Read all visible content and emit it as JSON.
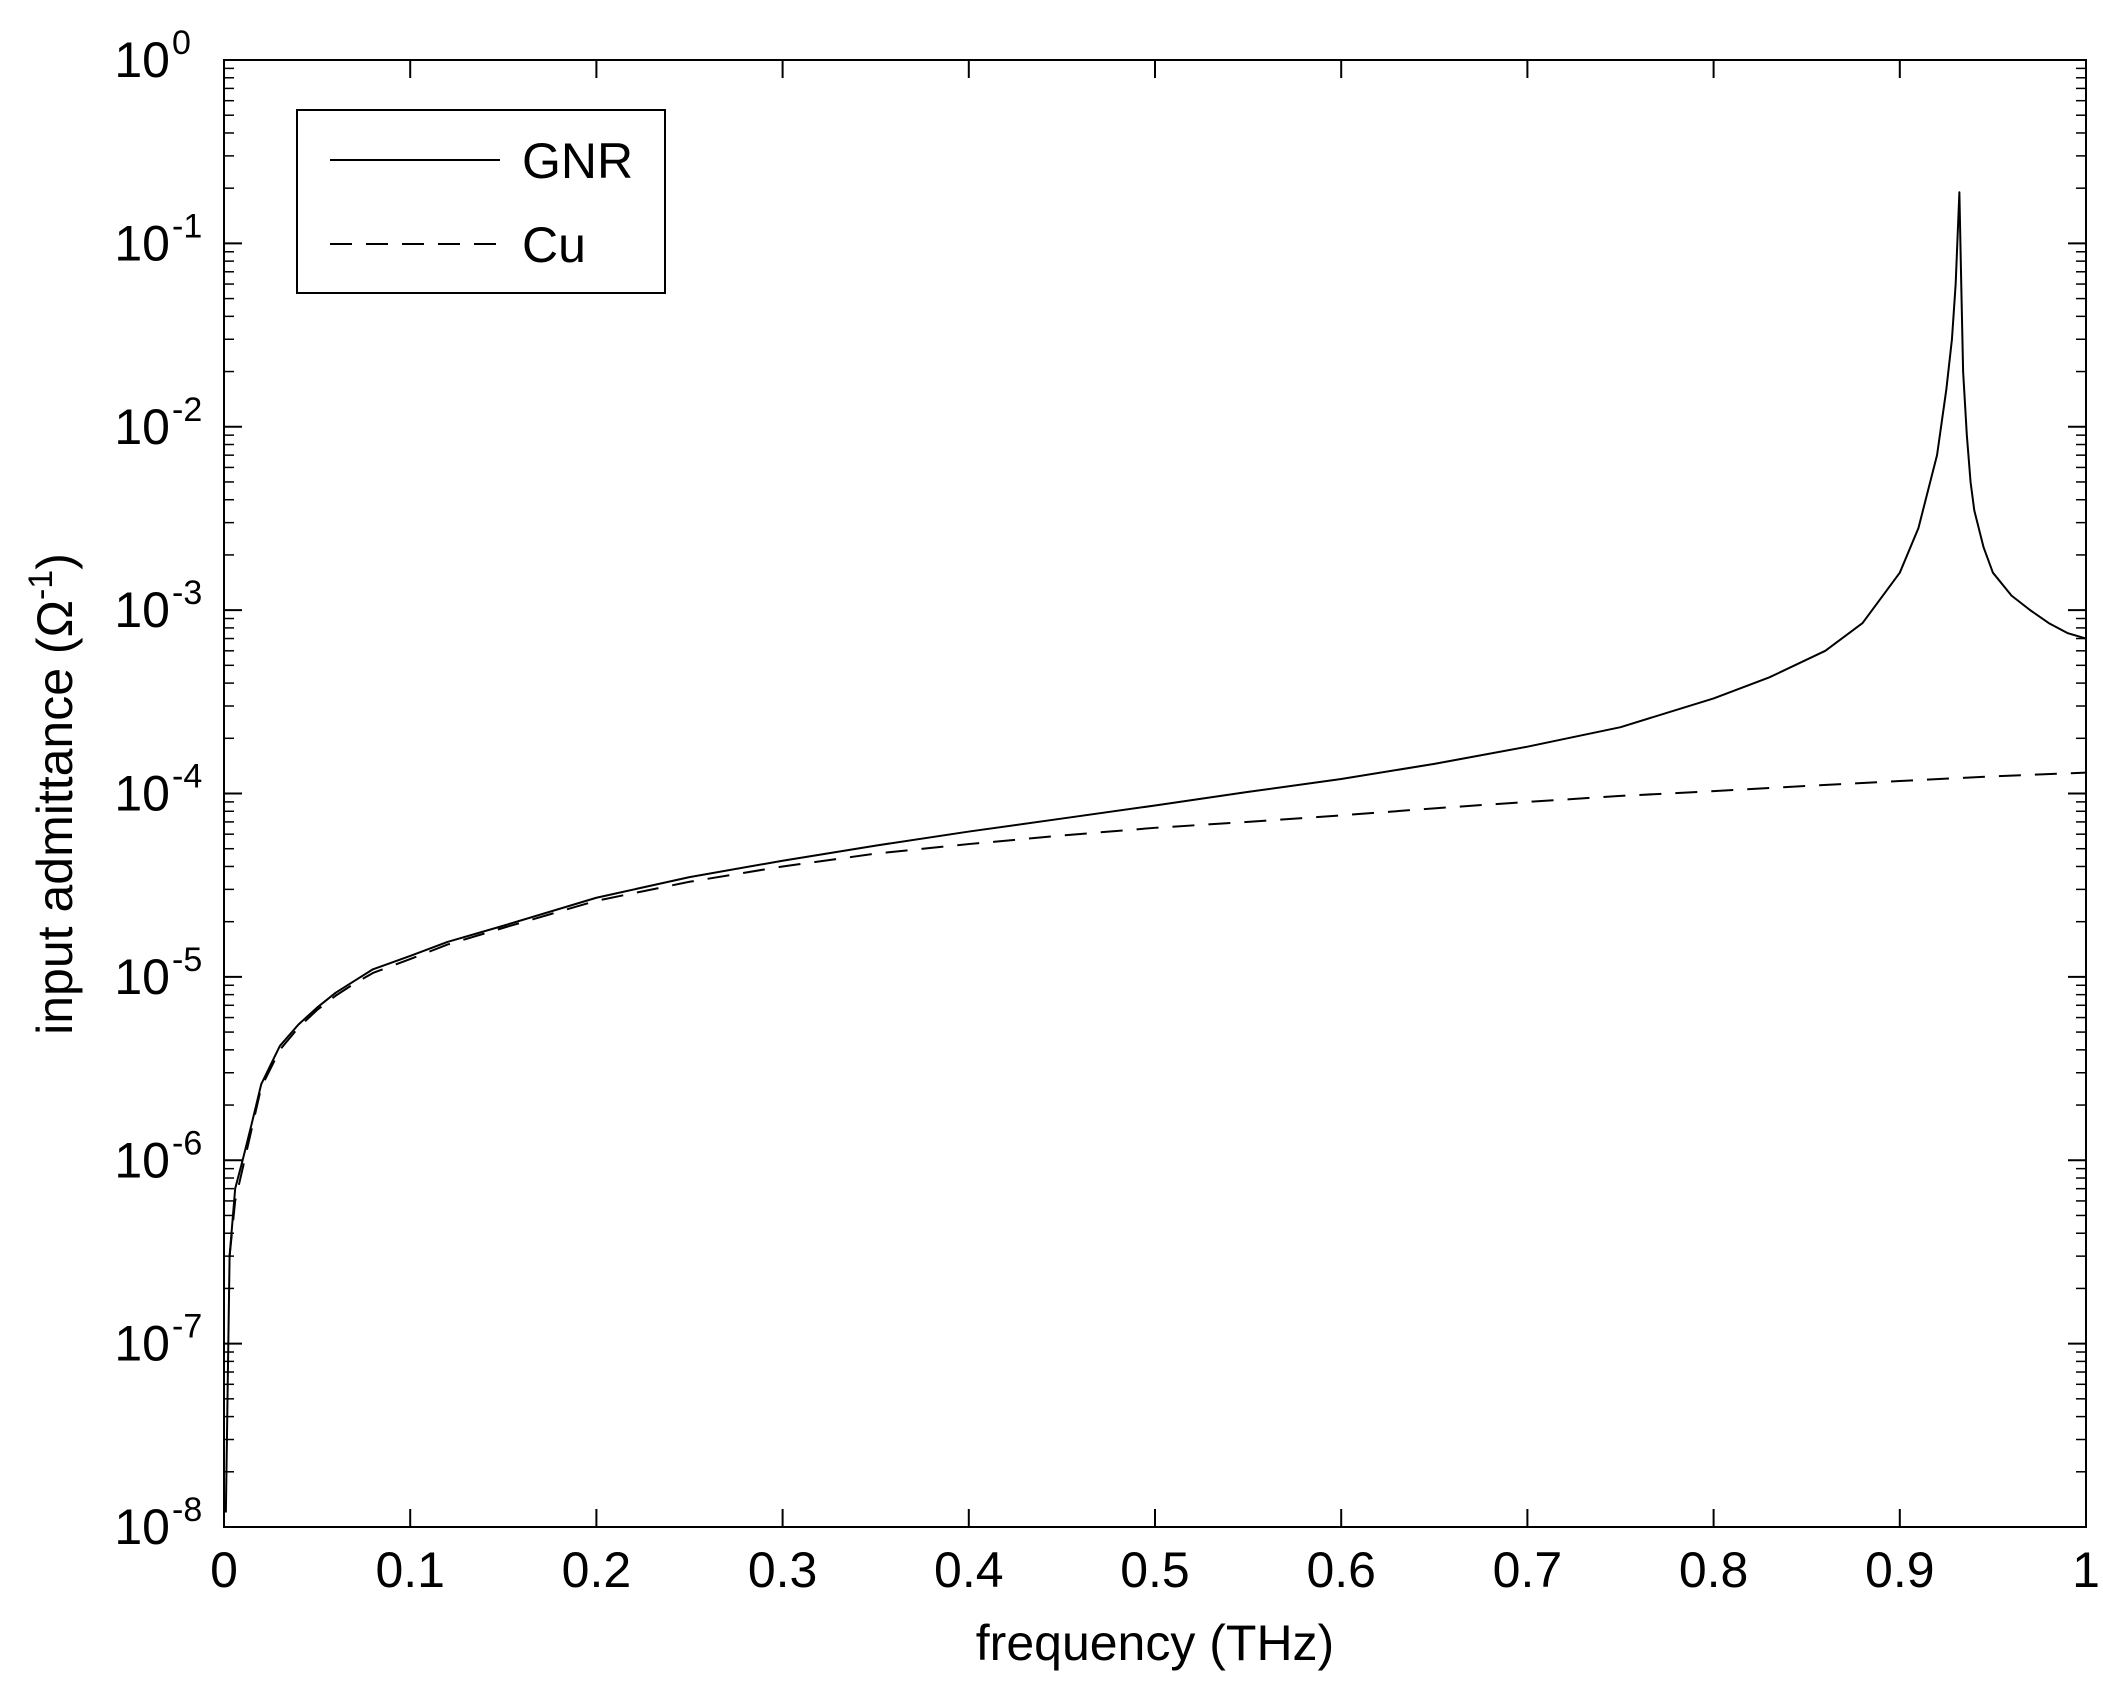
{
  "chart_data": {
    "type": "line",
    "title": "",
    "xlabel": "frequency (THz)",
    "ylabel": {
      "text": "input admittance (Ω",
      "exponent": "-1",
      "close": ")"
    },
    "xlim": [
      0,
      1
    ],
    "ylim": [
      1e-08,
      1
    ],
    "yscale": "log",
    "grid": false,
    "legend_position": "top-left",
    "x_ticks": [
      "0",
      "0.1",
      "0.2",
      "0.3",
      "0.4",
      "0.5",
      "0.6",
      "0.7",
      "0.8",
      "0.9",
      "1"
    ],
    "y_ticks": [
      {
        "base": "10",
        "exp": "-8"
      },
      {
        "base": "10",
        "exp": "-7"
      },
      {
        "base": "10",
        "exp": "-6"
      },
      {
        "base": "10",
        "exp": "-5"
      },
      {
        "base": "10",
        "exp": "-4"
      },
      {
        "base": "10",
        "exp": "-3"
      },
      {
        "base": "10",
        "exp": "-2"
      },
      {
        "base": "10",
        "exp": "-1"
      },
      {
        "base": "10",
        "exp": "0"
      }
    ],
    "series": [
      {
        "name": "GNR",
        "style": "solid",
        "color": "#000000",
        "x": [
          0.001,
          0.003,
          0.006,
          0.01,
          0.015,
          0.02,
          0.03,
          0.04,
          0.05,
          0.06,
          0.07,
          0.08,
          0.1,
          0.12,
          0.15,
          0.2,
          0.25,
          0.3,
          0.35,
          0.4,
          0.45,
          0.5,
          0.55,
          0.6,
          0.65,
          0.7,
          0.75,
          0.8,
          0.83,
          0.86,
          0.88,
          0.9,
          0.91,
          0.92,
          0.925,
          0.928,
          0.93,
          0.932,
          0.933,
          0.934,
          0.936,
          0.938,
          0.94,
          0.945,
          0.95,
          0.96,
          0.97,
          0.98,
          0.99,
          1.0
        ],
        "y": [
          1.2e-08,
          3e-07,
          7e-07,
          1e-06,
          1.6e-06,
          2.6e-06,
          4.2e-06,
          5.5e-06,
          6.8e-06,
          8.2e-06,
          9.5e-06,
          1.1e-05,
          1.3e-05,
          1.55e-05,
          1.9e-05,
          2.7e-05,
          3.5e-05,
          4.3e-05,
          5.2e-05,
          6.2e-05,
          7.3e-05,
          8.6e-05,
          0.000102,
          0.00012,
          0.000145,
          0.00018,
          0.00023,
          0.00033,
          0.00043,
          0.0006,
          0.00085,
          0.0016,
          0.0028,
          0.007,
          0.016,
          0.03,
          0.06,
          0.19,
          0.06,
          0.02,
          0.009,
          0.005,
          0.0035,
          0.0022,
          0.0016,
          0.0012,
          0.001,
          0.00085,
          0.00075,
          0.0007
        ]
      },
      {
        "name": "Cu",
        "style": "dashed",
        "color": "#000000",
        "x": [
          0.003,
          0.006,
          0.01,
          0.015,
          0.02,
          0.03,
          0.04,
          0.05,
          0.06,
          0.07,
          0.08,
          0.1,
          0.12,
          0.15,
          0.2,
          0.25,
          0.3,
          0.35,
          0.4,
          0.45,
          0.5,
          0.55,
          0.6,
          0.65,
          0.7,
          0.75,
          0.8,
          0.85,
          0.9,
          0.95,
          1.0
        ],
        "y": [
          3e-07,
          6e-07,
          9e-07,
          1.5e-06,
          2.5e-06,
          4e-06,
          5.3e-06,
          6.6e-06,
          7.9e-06,
          9.2e-06,
          1.05e-05,
          1.25e-05,
          1.5e-05,
          1.85e-05,
          2.6e-05,
          3.3e-05,
          4e-05,
          4.7e-05,
          5.3e-05,
          5.9e-05,
          6.5e-05,
          7e-05,
          7.6e-05,
          8.3e-05,
          9e-05,
          9.7e-05,
          0.000103,
          0.00011,
          0.000117,
          0.000124,
          0.00013
        ]
      }
    ]
  }
}
